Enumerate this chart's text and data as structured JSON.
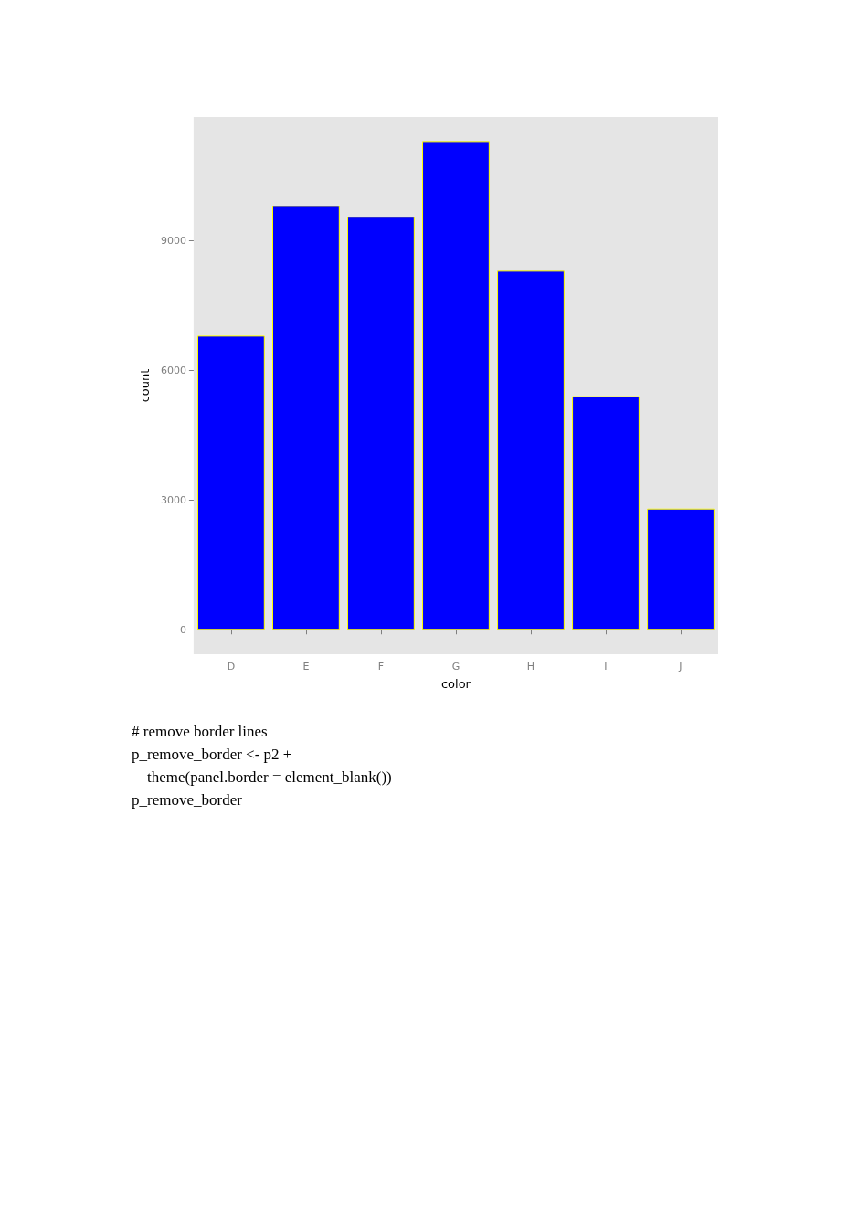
{
  "chart_data": {
    "type": "bar",
    "xlabel": "color",
    "ylabel": "count",
    "categories": [
      "D",
      "E",
      "F",
      "G",
      "H",
      "I",
      "J"
    ],
    "values": [
      6800,
      9800,
      9550,
      11300,
      8300,
      5400,
      2800
    ],
    "color": "#0000ff",
    "ylim": [
      -565,
      11857
    ],
    "yticks": [
      0,
      3000,
      6000,
      9000
    ],
    "grid": false,
    "annotations": [
      "# remove border lines",
      "p_remove_border <- p2 +",
      "    theme(panel.border = element_blank())",
      "p_remove_border"
    ]
  }
}
